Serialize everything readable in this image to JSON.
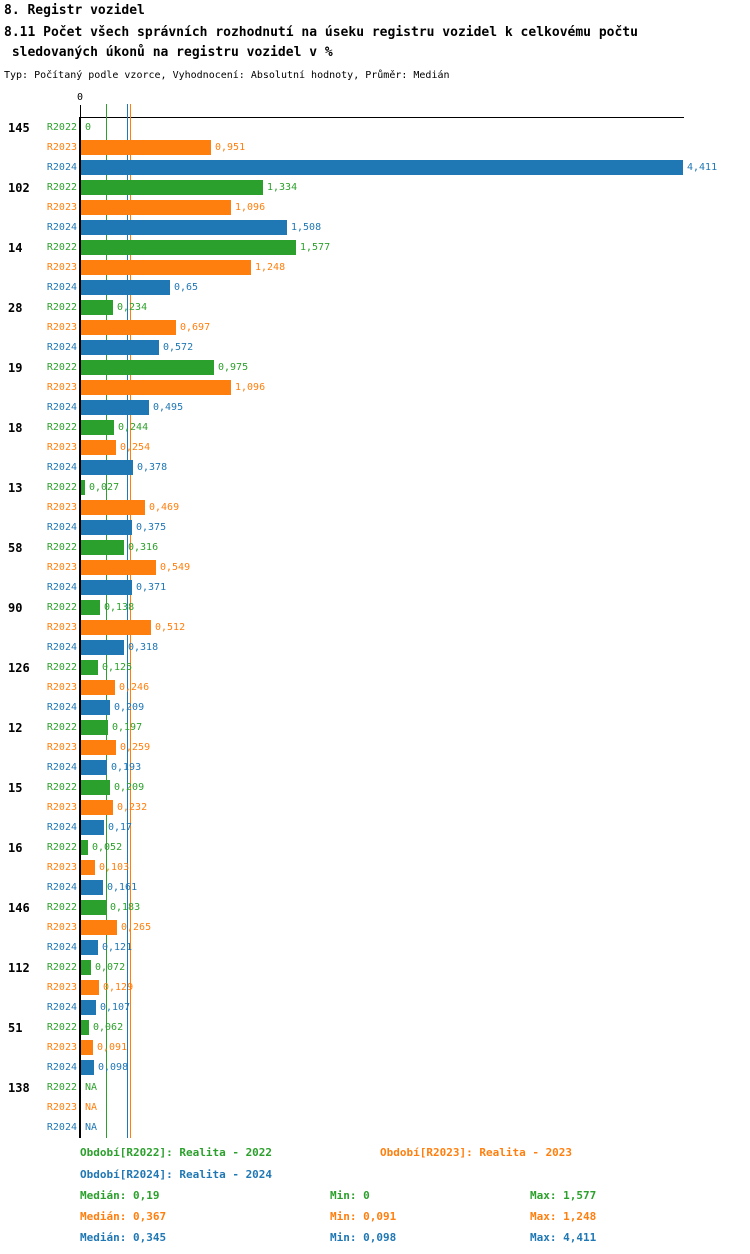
{
  "header": {
    "title": "8. Registr vozidel",
    "subtitle_line1": "8.11 Počet všech správních rozhodnutí na úseku registru vozidel k celkovému počtu",
    "subtitle_line2": " sledovaných úkonů na registru vozidel v %",
    "meta": "Typ: Počítaný podle vzorce, Vyhodnocení: Absolutní hodnoty, Průměr: Medián"
  },
  "chart_data": {
    "type": "bar",
    "orientation": "horizontal",
    "title": "8.11 Počet všech správních rozhodnutí na úseku registru vozidel k celkovému počtu sledovaných úkonů na registru vozidel v %",
    "xlabel": "",
    "ylabel": "",
    "xlim": [
      0,
      4.55
    ],
    "grid": false,
    "legend_position": "bottom",
    "axis": {
      "origin_label": "0"
    },
    "series_order": [
      "R2022",
      "R2023",
      "R2024"
    ],
    "series_colors": {
      "R2022": "#2ca02c",
      "R2023": "#ff7f0e",
      "R2024": "#1f77b4"
    },
    "medians": [
      {
        "series": "R2022",
        "value": 0.19
      },
      {
        "series": "R2023",
        "value": 0.367
      },
      {
        "series": "R2024",
        "value": 0.345
      }
    ],
    "groups": [
      {
        "label": "145",
        "values": [
          {
            "series": "R2022",
            "value": 0,
            "display": "0"
          },
          {
            "series": "R2023",
            "value": 0.951,
            "display": "0,951"
          },
          {
            "series": "R2024",
            "value": 4.411,
            "display": "4,411"
          }
        ]
      },
      {
        "label": "102",
        "values": [
          {
            "series": "R2022",
            "value": 1.334,
            "display": "1,334"
          },
          {
            "series": "R2023",
            "value": 1.096,
            "display": "1,096"
          },
          {
            "series": "R2024",
            "value": 1.508,
            "display": "1,508"
          }
        ]
      },
      {
        "label": "14",
        "values": [
          {
            "series": "R2022",
            "value": 1.577,
            "display": "1,577"
          },
          {
            "series": "R2023",
            "value": 1.248,
            "display": "1,248"
          },
          {
            "series": "R2024",
            "value": 0.65,
            "display": "0,65"
          }
        ]
      },
      {
        "label": "28",
        "values": [
          {
            "series": "R2022",
            "value": 0.234,
            "display": "0,234"
          },
          {
            "series": "R2023",
            "value": 0.697,
            "display": "0,697"
          },
          {
            "series": "R2024",
            "value": 0.572,
            "display": "0,572"
          }
        ]
      },
      {
        "label": "19",
        "values": [
          {
            "series": "R2022",
            "value": 0.975,
            "display": "0,975"
          },
          {
            "series": "R2023",
            "value": 1.096,
            "display": "1,096"
          },
          {
            "series": "R2024",
            "value": 0.495,
            "display": "0,495"
          }
        ]
      },
      {
        "label": "18",
        "values": [
          {
            "series": "R2022",
            "value": 0.244,
            "display": "0,244"
          },
          {
            "series": "R2023",
            "value": 0.254,
            "display": "0,254"
          },
          {
            "series": "R2024",
            "value": 0.378,
            "display": "0,378"
          }
        ]
      },
      {
        "label": "13",
        "values": [
          {
            "series": "R2022",
            "value": 0.027,
            "display": "0,027"
          },
          {
            "series": "R2023",
            "value": 0.469,
            "display": "0,469"
          },
          {
            "series": "R2024",
            "value": 0.375,
            "display": "0,375"
          }
        ]
      },
      {
        "label": "58",
        "values": [
          {
            "series": "R2022",
            "value": 0.316,
            "display": "0,316"
          },
          {
            "series": "R2023",
            "value": 0.549,
            "display": "0,549"
          },
          {
            "series": "R2024",
            "value": 0.371,
            "display": "0,371"
          }
        ]
      },
      {
        "label": "90",
        "values": [
          {
            "series": "R2022",
            "value": 0.138,
            "display": "0,138"
          },
          {
            "series": "R2023",
            "value": 0.512,
            "display": "0,512"
          },
          {
            "series": "R2024",
            "value": 0.318,
            "display": "0,318"
          }
        ]
      },
      {
        "label": "126",
        "values": [
          {
            "series": "R2022",
            "value": 0.125,
            "display": "0,125"
          },
          {
            "series": "R2023",
            "value": 0.246,
            "display": "0,246"
          },
          {
            "series": "R2024",
            "value": 0.209,
            "display": "0,209"
          }
        ]
      },
      {
        "label": "12",
        "values": [
          {
            "series": "R2022",
            "value": 0.197,
            "display": "0,197"
          },
          {
            "series": "R2023",
            "value": 0.259,
            "display": "0,259"
          },
          {
            "series": "R2024",
            "value": 0.193,
            "display": "0,193"
          }
        ]
      },
      {
        "label": "15",
        "values": [
          {
            "series": "R2022",
            "value": 0.209,
            "display": "0,209"
          },
          {
            "series": "R2023",
            "value": 0.232,
            "display": "0,232"
          },
          {
            "series": "R2024",
            "value": 0.17,
            "display": "0,17"
          }
        ]
      },
      {
        "label": "16",
        "values": [
          {
            "series": "R2022",
            "value": 0.052,
            "display": "0,052"
          },
          {
            "series": "R2023",
            "value": 0.103,
            "display": "0,103"
          },
          {
            "series": "R2024",
            "value": 0.161,
            "display": "0,161"
          }
        ]
      },
      {
        "label": "146",
        "values": [
          {
            "series": "R2022",
            "value": 0.183,
            "display": "0,183"
          },
          {
            "series": "R2023",
            "value": 0.265,
            "display": "0,265"
          },
          {
            "series": "R2024",
            "value": 0.121,
            "display": "0,121"
          }
        ]
      },
      {
        "label": "112",
        "values": [
          {
            "series": "R2022",
            "value": 0.072,
            "display": "0,072"
          },
          {
            "series": "R2023",
            "value": 0.129,
            "display": "0,129"
          },
          {
            "series": "R2024",
            "value": 0.107,
            "display": "0,107"
          }
        ]
      },
      {
        "label": "51",
        "values": [
          {
            "series": "R2022",
            "value": 0.062,
            "display": "0,062"
          },
          {
            "series": "R2023",
            "value": 0.091,
            "display": "0,091"
          },
          {
            "series": "R2024",
            "value": 0.098,
            "display": "0,098"
          }
        ]
      },
      {
        "label": "138",
        "values": [
          {
            "series": "R2022",
            "value": null,
            "display": "NA"
          },
          {
            "series": "R2023",
            "value": null,
            "display": "NA"
          },
          {
            "series": "R2024",
            "value": null,
            "display": "NA"
          }
        ]
      }
    ]
  },
  "footer": {
    "legend": [
      {
        "series": "R2022",
        "text": "Období[R2022]: Realita - 2022"
      },
      {
        "series": "R2023",
        "text": "Období[R2023]: Realita - 2023"
      },
      {
        "series": "R2024",
        "text": "Období[R2024]: Realita - 2024"
      }
    ],
    "stats": [
      {
        "series": "R2022",
        "median": "Medián: 0,19",
        "min": "Min: 0",
        "max": "Max: 1,577"
      },
      {
        "series": "R2023",
        "median": "Medián: 0,367",
        "min": "Min: 0,091",
        "max": "Max: 1,248"
      },
      {
        "series": "R2024",
        "median": "Medián: 0,345",
        "min": "Min: 0,098",
        "max": "Max: 4,411"
      }
    ]
  }
}
